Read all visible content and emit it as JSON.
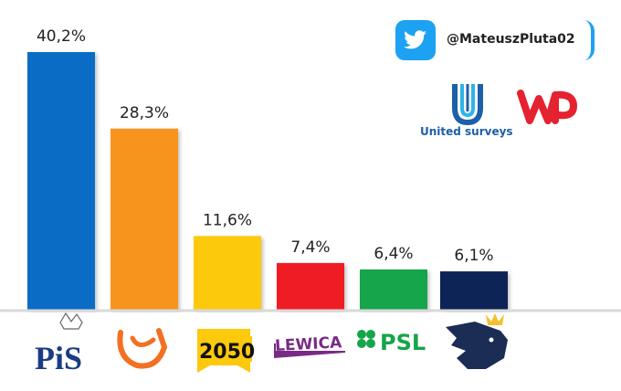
{
  "chart_data": {
    "type": "bar",
    "categories": [
      "PiS",
      "KO",
      "Polska 2050",
      "Lewica",
      "PSL",
      "Konfederacja"
    ],
    "values": [
      40.2,
      28.3,
      11.6,
      7.4,
      6.4,
      6.1
    ],
    "value_labels": [
      "40,2%",
      "28,3%",
      "11,6%",
      "7,4%",
      "6,4%",
      "6,1%"
    ],
    "colors": [
      "#0a6cc4",
      "#f7941d",
      "#fdc90d",
      "#ef1c24",
      "#16a54a",
      "#0d2456"
    ],
    "ylim": [
      0,
      45
    ],
    "grid": false,
    "legend": "none",
    "logo_texts": [
      "PiS",
      "2050",
      "LEWICA",
      "PSL"
    ]
  },
  "watermark": {
    "handle": "@MateuszPluta02",
    "pollster": "United surveys",
    "icon": "twitter-icon",
    "accent": "#1da1f2"
  }
}
